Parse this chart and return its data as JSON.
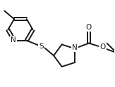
{
  "bg_color": "#ffffff",
  "bond_color": "#1a1a1a",
  "bond_lw": 1.4,
  "figsize": [
    1.63,
    1.24
  ],
  "dpi": 100,
  "xlim": [
    0,
    163
  ],
  "ylim": [
    0,
    124
  ]
}
